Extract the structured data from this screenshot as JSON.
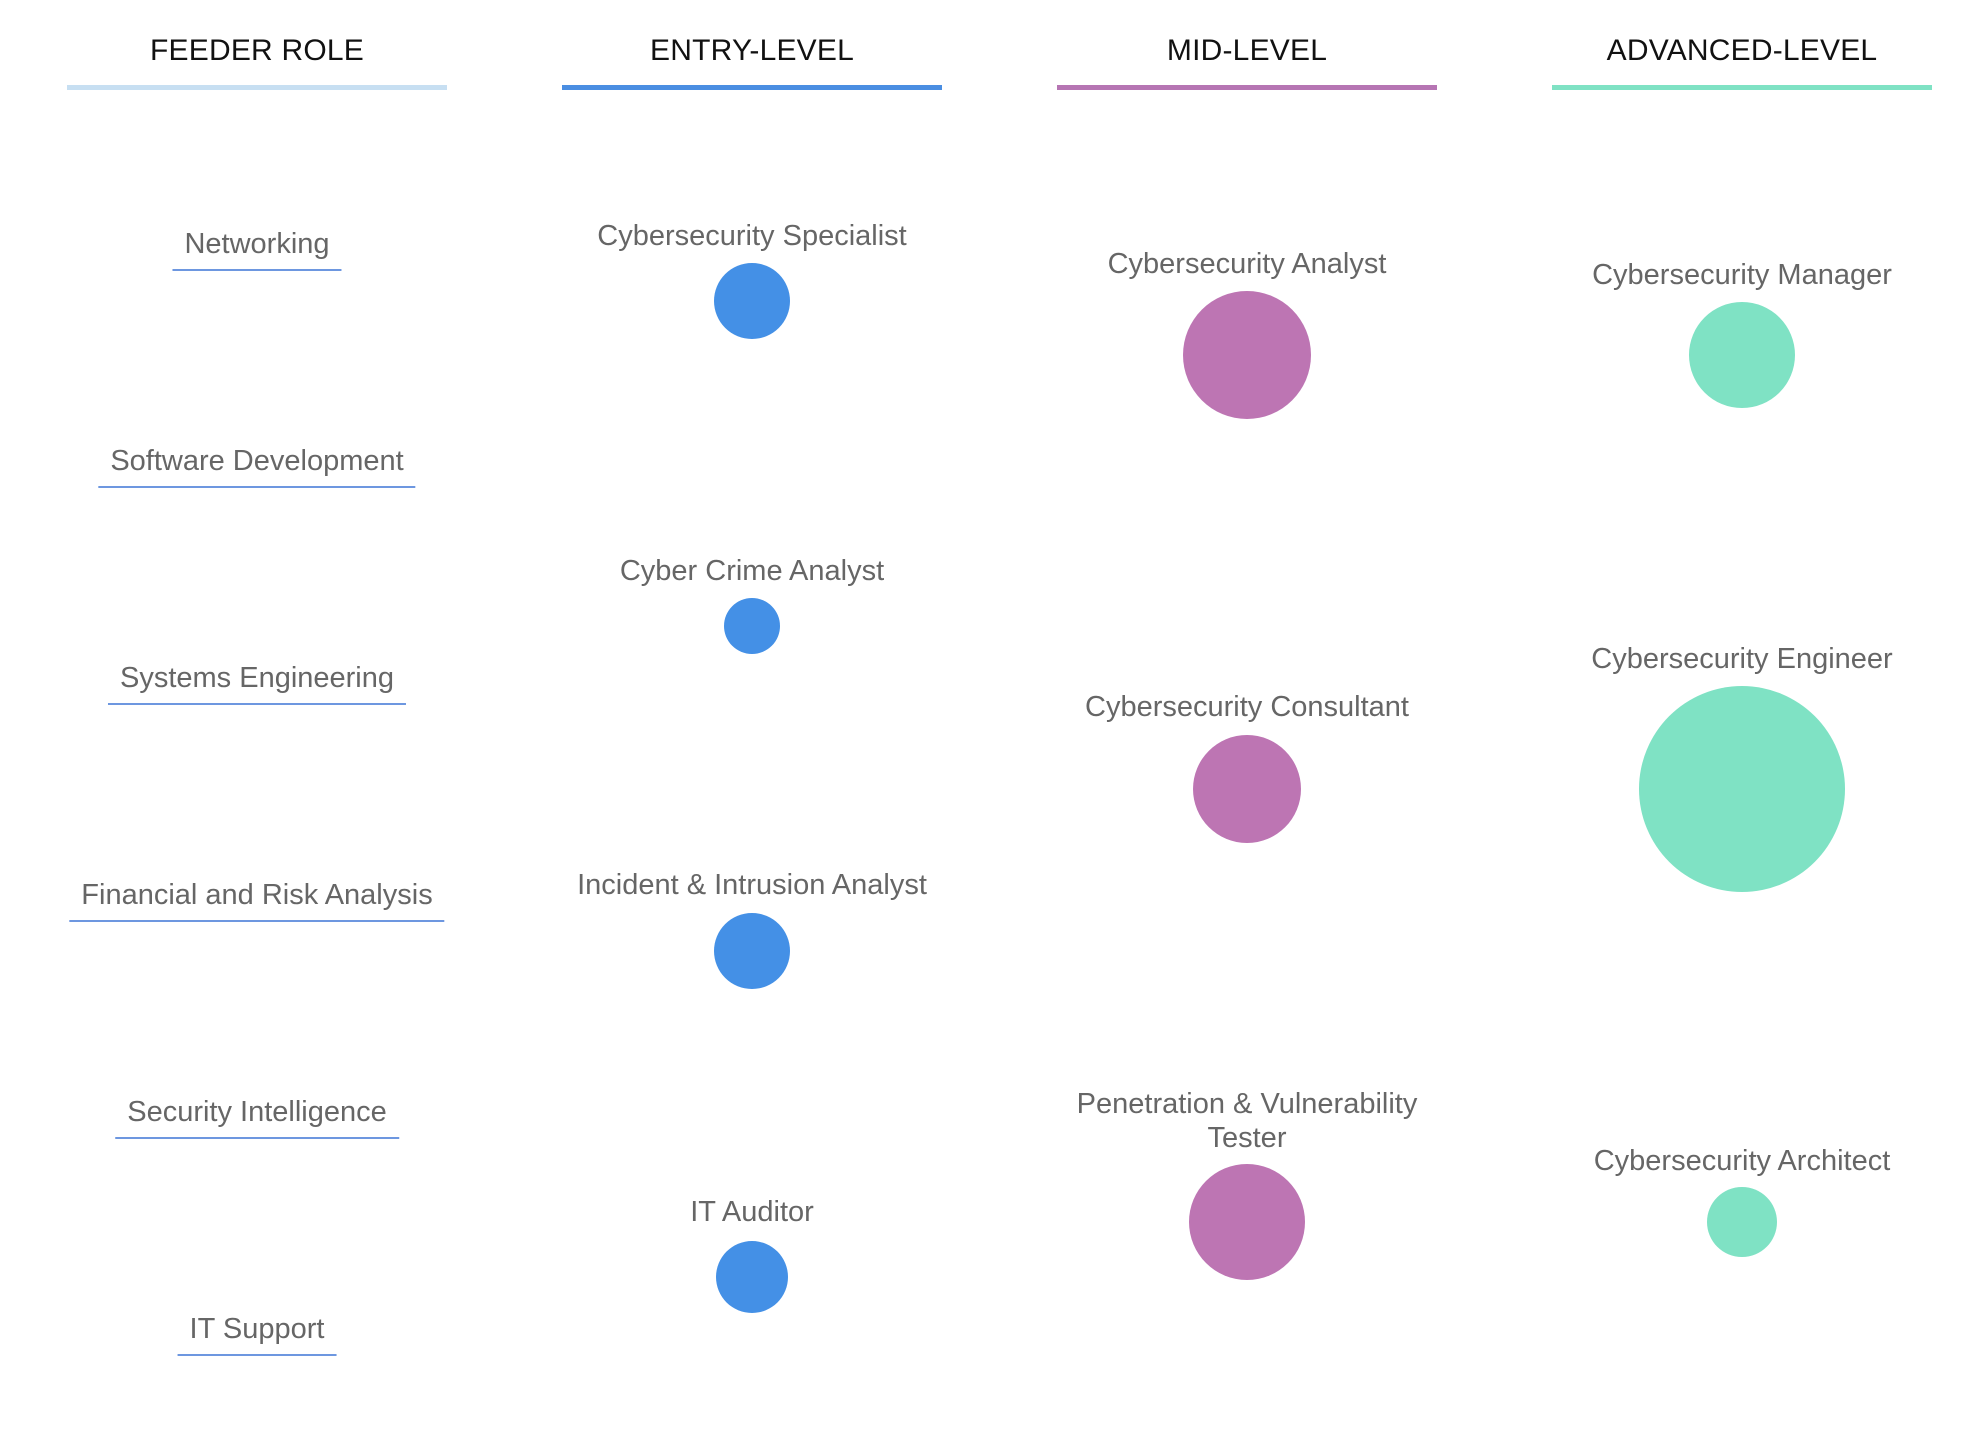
{
  "columns": [
    {
      "title": "FEEDER ROLE",
      "color": "#c7dff2"
    },
    {
      "title": "ENTRY-LEVEL",
      "color": "#4a8ee2"
    },
    {
      "title": "MID-LEVEL",
      "color": "#b675b3"
    },
    {
      "title": "ADVANCED-LEVEL",
      "color": "#7fe2c4"
    }
  ],
  "feeder_roles": [
    "Networking",
    "Software Development",
    "Systems Engineering",
    "Financial and Risk Analysis",
    "Security Intelligence",
    "IT Support"
  ],
  "entry_roles": [
    {
      "label": "Cybersecurity Specialist",
      "color": "#4490e6"
    },
    {
      "label": "Cyber Crime Analyst",
      "color": "#4490e6"
    },
    {
      "label": "Incident & Intrusion Analyst",
      "color": "#4490e6"
    },
    {
      "label": "IT Auditor",
      "color": "#4490e6"
    }
  ],
  "mid_roles": [
    {
      "label": "Cybersecurity Analyst",
      "color": "#bd75b3"
    },
    {
      "label": "Cybersecurity Consultant",
      "color": "#bd75b3"
    },
    {
      "label_line1": "Penetration & Vulnerability",
      "label_line2": "Tester",
      "color": "#bd75b3"
    }
  ],
  "advanced_roles": [
    {
      "label": "Cybersecurity Manager",
      "color": "#7fe2c4"
    },
    {
      "label": "Cybersecurity Engineer",
      "color": "#7fe2c4"
    },
    {
      "label": "Cybersecurity Architect",
      "color": "#7fe2c4"
    }
  ]
}
